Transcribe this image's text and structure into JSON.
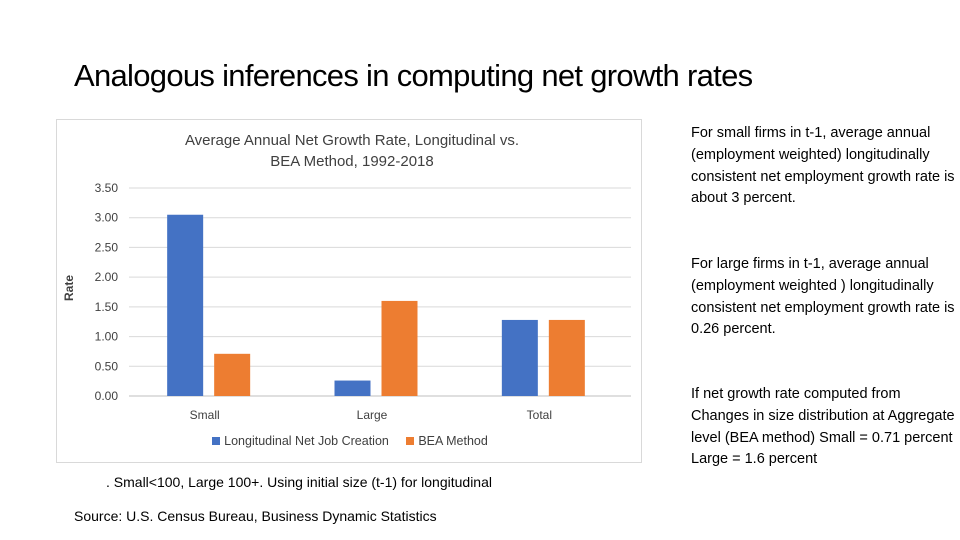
{
  "slide": {
    "title": "Analogous inferences in computing net growth rates",
    "footnote": ". Small<100, Large 100+. Using initial size (t-1) for longitudinal",
    "source": "Source: U.S. Census Bureau, Business Dynamic Statistics"
  },
  "notes": [
    "For small firms in t-1, average annual (employment weighted) longitudinally consistent net employment growth rate is about 3 percent.",
    "For large firms in t-1, average annual (employment weighted ) longitudinally consistent net employment growth rate is 0.26 percent.",
    "If net growth rate computed from Changes in size distribution at Aggregate level (BEA method) Small = 0.71 percent Large = 1.6 percent"
  ],
  "chart_data": {
    "type": "bar",
    "title": "Average Annual Net Growth Rate, Longitudinal vs. BEA Method, 1992-2018",
    "xlabel": "",
    "ylabel": "Rate",
    "categories": [
      "Small",
      "Large",
      "Total"
    ],
    "series": [
      {
        "name": "Longitudinal Net Job Creation",
        "color": "#4472c4",
        "values": [
          3.05,
          0.26,
          1.28
        ]
      },
      {
        "name": "BEA Method",
        "color": "#ed7d31",
        "values": [
          0.71,
          1.6,
          1.28
        ]
      }
    ],
    "ylim": [
      0,
      3.5
    ],
    "yticks": [
      "0.00",
      "0.50",
      "1.00",
      "1.50",
      "2.00",
      "2.50",
      "3.00",
      "3.50"
    ],
    "grid": true,
    "legend": "bottom"
  }
}
